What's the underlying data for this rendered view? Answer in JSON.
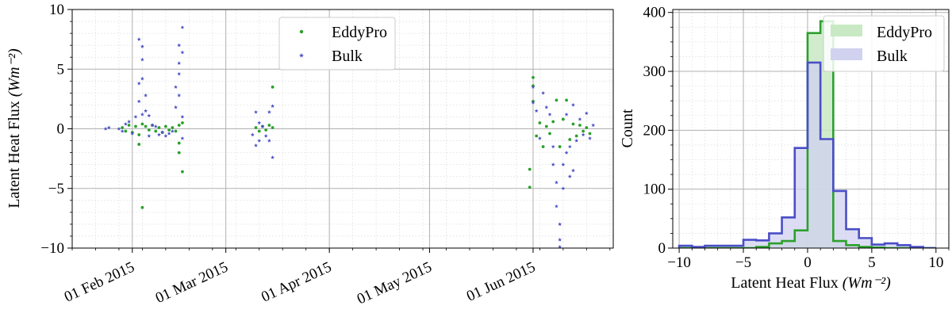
{
  "colors": {
    "eddypro": "#2ca02c",
    "bulk": "#4a4ec6",
    "eddypro_fill": "#c8e9c4",
    "bulk_fill": "#d0d2f0",
    "grid": "#b0b0b0",
    "minor_grid": "#e6e6e6"
  },
  "chart_data": [
    {
      "type": "scatter",
      "title": "",
      "xlabel": "",
      "ylabel": "Latent Heat Flux",
      "ylabel_unit": "(Wm⁻²)",
      "x_axis": "date",
      "xlim": [
        "2015-01-14",
        "2015-06-25"
      ],
      "ylim": [
        -10,
        10
      ],
      "x_ticks": [
        {
          "date": "2015-02-01",
          "label": "01 Feb 2015"
        },
        {
          "date": "2015-03-01",
          "label": "01 Mar 2015"
        },
        {
          "date": "2015-04-01",
          "label": "01 Apr 2015"
        },
        {
          "date": "2015-05-01",
          "label": "01 May 2015"
        },
        {
          "date": "2015-06-01",
          "label": "01 Jun 2015"
        }
      ],
      "y_ticks": [
        -10,
        -5,
        0,
        5,
        10
      ],
      "y_tick_labels": [
        "−10",
        "−5",
        "0",
        "5",
        "10"
      ],
      "grid": true,
      "legend": "upper-center",
      "series": [
        {
          "name": "EddyPro",
          "marker": "dot",
          "points": [
            [
              "2015-01-29",
              0.1
            ],
            [
              "2015-01-30",
              -0.2
            ],
            [
              "2015-01-31",
              0.3
            ],
            [
              "2015-02-01",
              -0.3
            ],
            [
              "2015-02-02",
              0.2
            ],
            [
              "2015-02-03",
              -0.5
            ],
            [
              "2015-02-03",
              -1.3
            ],
            [
              "2015-02-04",
              0.4
            ],
            [
              "2015-02-04",
              -6.6
            ],
            [
              "2015-02-05",
              0.2
            ],
            [
              "2015-02-06",
              -0.1
            ],
            [
              "2015-02-07",
              0.3
            ],
            [
              "2015-02-08",
              -0.2
            ],
            [
              "2015-02-09",
              0.1
            ],
            [
              "2015-02-10",
              -0.3
            ],
            [
              "2015-02-11",
              0.2
            ],
            [
              "2015-02-12",
              -0.1
            ],
            [
              "2015-02-13",
              0.1
            ],
            [
              "2015-02-14",
              -0.2
            ],
            [
              "2015-02-15",
              0.3
            ],
            [
              "2015-02-15",
              -1.2
            ],
            [
              "2015-02-15",
              -2.0
            ],
            [
              "2015-02-16",
              -3.6
            ],
            [
              "2015-02-16",
              0.5
            ],
            [
              "2015-03-10",
              0.1
            ],
            [
              "2015-03-11",
              -0.2
            ],
            [
              "2015-03-12",
              0.2
            ],
            [
              "2015-03-13",
              -0.1
            ],
            [
              "2015-03-14",
              0.3
            ],
            [
              "2015-03-15",
              0.1
            ],
            [
              "2015-03-15",
              3.5
            ],
            [
              "2015-05-31",
              -4.9
            ],
            [
              "2015-05-31",
              -3.4
            ],
            [
              "2015-06-01",
              4.3
            ],
            [
              "2015-06-01",
              3.6
            ],
            [
              "2015-06-01",
              2.3
            ],
            [
              "2015-06-02",
              -0.6
            ],
            [
              "2015-06-03",
              0.5
            ],
            [
              "2015-06-04",
              -1.5
            ],
            [
              "2015-06-05",
              0.2
            ],
            [
              "2015-06-06",
              -0.4
            ],
            [
              "2015-06-07",
              0.6
            ],
            [
              "2015-06-08",
              2.4
            ],
            [
              "2015-06-09",
              -1.5
            ],
            [
              "2015-06-10",
              0.8
            ],
            [
              "2015-06-11",
              2.4
            ],
            [
              "2015-06-12",
              -0.9
            ],
            [
              "2015-06-13",
              0.4
            ],
            [
              "2015-06-14",
              -0.6
            ],
            [
              "2015-06-15",
              0.3
            ],
            [
              "2015-06-16",
              -0.2
            ],
            [
              "2015-06-17",
              0.1
            ],
            [
              "2015-06-18",
              -0.4
            ]
          ]
        },
        {
          "name": "Bulk",
          "marker": "star",
          "points": [
            [
              "2015-01-24",
              0.0
            ],
            [
              "2015-01-25",
              0.1
            ],
            [
              "2015-01-28",
              0.0
            ],
            [
              "2015-01-29",
              -0.2
            ],
            [
              "2015-01-30",
              0.4
            ],
            [
              "2015-01-31",
              0.6
            ],
            [
              "2015-02-01",
              -0.4
            ],
            [
              "2015-02-02",
              1.0
            ],
            [
              "2015-02-03",
              2.3
            ],
            [
              "2015-02-03",
              3.8
            ],
            [
              "2015-02-03",
              7.5
            ],
            [
              "2015-02-04",
              6.9
            ],
            [
              "2015-02-04",
              5.8
            ],
            [
              "2015-02-04",
              4.2
            ],
            [
              "2015-02-04",
              1.2
            ],
            [
              "2015-02-05",
              2.8
            ],
            [
              "2015-02-05",
              1.5
            ],
            [
              "2015-02-06",
              1.1
            ],
            [
              "2015-02-06",
              -0.6
            ],
            [
              "2015-02-07",
              0.3
            ],
            [
              "2015-02-08",
              0.2
            ],
            [
              "2015-02-09",
              -0.5
            ],
            [
              "2015-02-10",
              -0.3
            ],
            [
              "2015-02-11",
              -0.6
            ],
            [
              "2015-02-12",
              -0.4
            ],
            [
              "2015-02-13",
              -0.2
            ],
            [
              "2015-02-14",
              1.8
            ],
            [
              "2015-02-14",
              3.5
            ],
            [
              "2015-02-15",
              5.5
            ],
            [
              "2015-02-15",
              7.0
            ],
            [
              "2015-02-15",
              4.6
            ],
            [
              "2015-02-15",
              2.8
            ],
            [
              "2015-02-16",
              8.5
            ],
            [
              "2015-02-16",
              6.4
            ],
            [
              "2015-02-16",
              1.0
            ],
            [
              "2015-02-16",
              -0.8
            ],
            [
              "2015-03-09",
              -0.5
            ],
            [
              "2015-03-10",
              1.4
            ],
            [
              "2015-03-10",
              -1.4
            ],
            [
              "2015-03-11",
              0.5
            ],
            [
              "2015-03-11",
              -1.0
            ],
            [
              "2015-03-12",
              0.2
            ],
            [
              "2015-03-13",
              -0.6
            ],
            [
              "2015-03-14",
              1.4
            ],
            [
              "2015-03-14",
              -1.0
            ],
            [
              "2015-03-15",
              1.9
            ],
            [
              "2015-03-15",
              -2.4
            ],
            [
              "2015-06-01",
              2.2
            ],
            [
              "2015-06-01",
              3.5
            ],
            [
              "2015-06-02",
              1.5
            ],
            [
              "2015-06-03",
              -0.8
            ],
            [
              "2015-06-04",
              3.0
            ],
            [
              "2015-06-05",
              1.8
            ],
            [
              "2015-06-06",
              1.2
            ],
            [
              "2015-06-07",
              -1.5
            ],
            [
              "2015-06-07",
              -3.0
            ],
            [
              "2015-06-08",
              -4.5
            ],
            [
              "2015-06-08",
              -6.5
            ],
            [
              "2015-06-09",
              -8.0
            ],
            [
              "2015-06-09",
              -9.3
            ],
            [
              "2015-06-09",
              -9.9
            ],
            [
              "2015-06-10",
              -5.0
            ],
            [
              "2015-06-10",
              -3.0
            ],
            [
              "2015-06-11",
              -2.0
            ],
            [
              "2015-06-11",
              1.2
            ],
            [
              "2015-06-12",
              -1.5
            ],
            [
              "2015-06-12",
              -4.0
            ],
            [
              "2015-06-13",
              -3.5
            ],
            [
              "2015-06-13",
              2.0
            ],
            [
              "2015-06-14",
              -1.0
            ],
            [
              "2015-06-15",
              0.8
            ],
            [
              "2015-06-16",
              -0.5
            ],
            [
              "2015-06-17",
              1.3
            ],
            [
              "2015-06-18",
              -0.8
            ],
            [
              "2015-06-19",
              0.3
            ]
          ]
        }
      ]
    },
    {
      "type": "histogram",
      "title": "",
      "xlabel": "Latent Heat Flux",
      "xlabel_unit": "(Wm⁻²)",
      "ylabel": "Count",
      "xlim": [
        -10.5,
        11
      ],
      "ylim": [
        0,
        405
      ],
      "x_ticks": [
        -10,
        -5,
        0,
        5,
        10
      ],
      "x_tick_labels": [
        "−10",
        "−5",
        "0",
        "5",
        "10"
      ],
      "y_ticks": [
        0,
        100,
        200,
        300,
        400
      ],
      "grid": true,
      "legend": "upper-right",
      "bin_edges": [
        -10,
        -9,
        -8,
        -7,
        -6,
        -5,
        -4,
        -3,
        -2,
        -1,
        0,
        1,
        2,
        3,
        4,
        5,
        6,
        7,
        8,
        9,
        10
      ],
      "series": [
        {
          "name": "EddyPro",
          "counts": [
            0,
            0,
            0,
            0,
            0,
            0,
            2,
            8,
            12,
            30,
            365,
            385,
            12,
            5,
            2,
            1,
            0,
            0,
            0,
            0
          ]
        },
        {
          "name": "Bulk",
          "counts": [
            4,
            2,
            4,
            4,
            4,
            14,
            13,
            25,
            52,
            170,
            315,
            185,
            97,
            32,
            17,
            6,
            8,
            5,
            2,
            0
          ]
        }
      ]
    }
  ]
}
